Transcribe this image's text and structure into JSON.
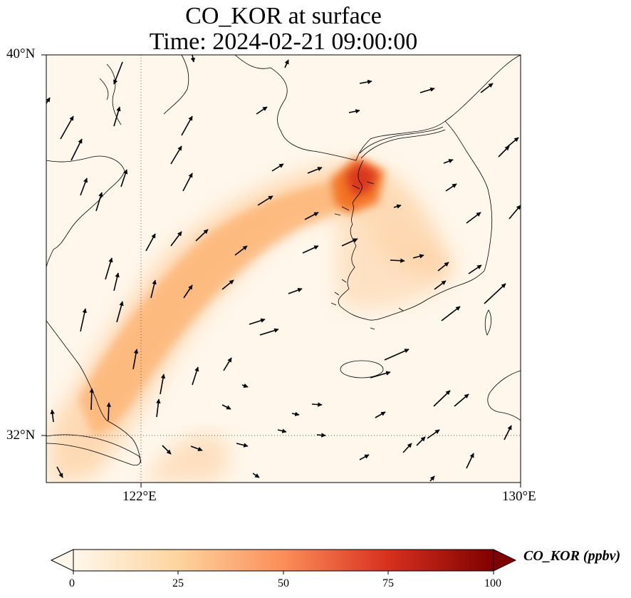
{
  "title": "CO_KOR at surface",
  "time_line": "Time: 2024-02-21 09:00:00",
  "axes": {
    "lat_ticks": [
      "40°N",
      "32°N"
    ],
    "lon_ticks": [
      "122°E",
      "130°E"
    ],
    "lat_range": [
      31,
      40
    ],
    "lon_range": [
      120,
      130
    ]
  },
  "colorbar": {
    "label": "CO_KOR (ppbv)",
    "ticks": [
      "0",
      "25",
      "50",
      "75",
      "100"
    ],
    "range": [
      0,
      100
    ],
    "colormap": "OrRd",
    "colors": [
      "#fff7ec",
      "#fdd49e",
      "#fc8d59",
      "#d7301f",
      "#7f0000"
    ]
  },
  "map": {
    "background": "#fff7ec",
    "plume_color": "#fdbe85",
    "hotspot_color": "#d7301f",
    "gridlines": "dotted",
    "features": [
      "coastline",
      "wind-vectors"
    ]
  }
}
